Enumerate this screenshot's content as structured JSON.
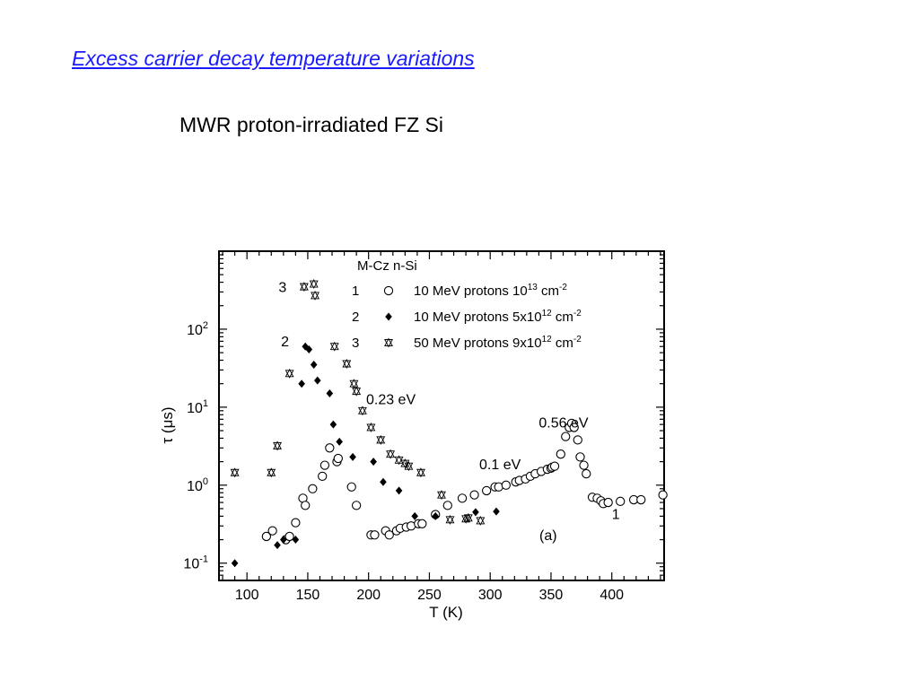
{
  "slide": {
    "title": "Excess carrier decay temperature variations",
    "subtitle": "MWR proton-irradiated FZ Si"
  },
  "chart_data": {
    "type": "scatter",
    "title": "M-Cz n-Si",
    "xlabel": "T (K)",
    "ylabel": "τ (μs)",
    "xlim": [
      77,
      443
    ],
    "ylim": [
      0.06,
      1000
    ],
    "yscale": "log",
    "xticks": [
      100,
      150,
      200,
      250,
      300,
      350,
      400
    ],
    "yticks": [
      {
        "value": 0.1,
        "base": "10",
        "exp": "-1"
      },
      {
        "value": 1,
        "base": "10",
        "exp": "0"
      },
      {
        "value": 10,
        "base": "10",
        "exp": "1"
      },
      {
        "value": 100,
        "base": "10",
        "exp": "2"
      }
    ],
    "grid": false,
    "panel_label": "(a)",
    "legend": {
      "placement": "top-right",
      "entries": [
        {
          "number": "1",
          "marker": "open-circle",
          "text": "10 MeV protons 10",
          "sup": "13",
          "unit": " cm",
          "unit_sup": "-2"
        },
        {
          "number": "2",
          "marker": "filled-diamond",
          "text": "10 MeV protons 5x10",
          "sup": "12",
          "unit": " cm",
          "unit_sup": "-2"
        },
        {
          "number": "3",
          "marker": "crossed-triangle",
          "text": "50 MeV protons 9x10",
          "sup": "12",
          "unit": " cm",
          "unit_sup": "-2"
        }
      ]
    },
    "annotations": [
      {
        "text": "0.23 eV",
        "x": 198,
        "y": 11
      },
      {
        "text": "0.56 eV",
        "x": 340,
        "y": 5.5
      },
      {
        "text": "0.1 eV",
        "x": 291,
        "y": 1.6
      },
      {
        "text": "3",
        "x": 126,
        "y": 300
      },
      {
        "text": "2",
        "x": 128,
        "y": 60
      },
      {
        "text": "1",
        "x": 400,
        "y": 0.37
      }
    ],
    "series": [
      {
        "marker": "open-circle",
        "x": [
          116,
          121,
          132,
          135,
          140,
          146,
          148,
          154,
          162,
          164,
          168,
          174,
          175,
          186,
          190,
          202,
          205,
          214,
          217,
          223,
          226,
          231,
          235,
          241,
          244,
          255,
          265,
          277,
          287,
          297,
          304,
          307,
          313,
          321,
          324,
          329,
          333,
          337,
          342,
          347,
          350,
          351,
          353,
          358,
          362,
          365,
          367,
          369,
          372,
          374,
          377,
          379,
          384,
          388,
          391,
          393,
          397,
          407,
          418,
          424,
          442
        ],
        "y": [
          0.22,
          0.26,
          0.2,
          0.22,
          0.33,
          0.68,
          0.55,
          0.9,
          1.3,
          1.8,
          3.0,
          2.0,
          2.2,
          0.95,
          0.55,
          0.23,
          0.23,
          0.26,
          0.23,
          0.26,
          0.28,
          0.29,
          0.3,
          0.32,
          0.32,
          0.42,
          0.55,
          0.68,
          0.75,
          0.85,
          0.95,
          0.95,
          1.0,
          1.1,
          1.15,
          1.2,
          1.3,
          1.4,
          1.5,
          1.6,
          1.65,
          1.7,
          1.75,
          2.5,
          4.2,
          5.5,
          6.2,
          5.5,
          3.8,
          2.3,
          1.8,
          1.4,
          0.7,
          0.68,
          0.63,
          0.58,
          0.6,
          0.62,
          0.65,
          0.65,
          0.75
        ]
      },
      {
        "marker": "filled-diamond",
        "x": [
          90,
          125,
          130,
          140,
          145,
          148,
          151,
          155,
          158,
          168,
          171,
          176,
          187,
          204,
          212,
          225,
          238,
          255,
          288,
          305
        ],
        "y": [
          0.1,
          0.17,
          0.2,
          0.2,
          20,
          60,
          55,
          35,
          22,
          15,
          6,
          3.6,
          2.3,
          2,
          1.1,
          0.85,
          0.4,
          0.4,
          0.45,
          0.46
        ]
      },
      {
        "marker": "crossed-triangle",
        "x": [
          90,
          120,
          125,
          135,
          147,
          155,
          156,
          172,
          182,
          188,
          190,
          195,
          202,
          210,
          218,
          225,
          230,
          233,
          243,
          260,
          267,
          280,
          282,
          292
        ],
        "y": [
          1.45,
          1.45,
          3.2,
          27,
          350,
          380,
          270,
          60,
          36,
          20,
          16,
          9,
          5.5,
          3.8,
          2.5,
          2.1,
          1.9,
          1.75,
          1.45,
          0.75,
          0.36,
          0.37,
          0.38,
          0.35
        ]
      }
    ]
  }
}
